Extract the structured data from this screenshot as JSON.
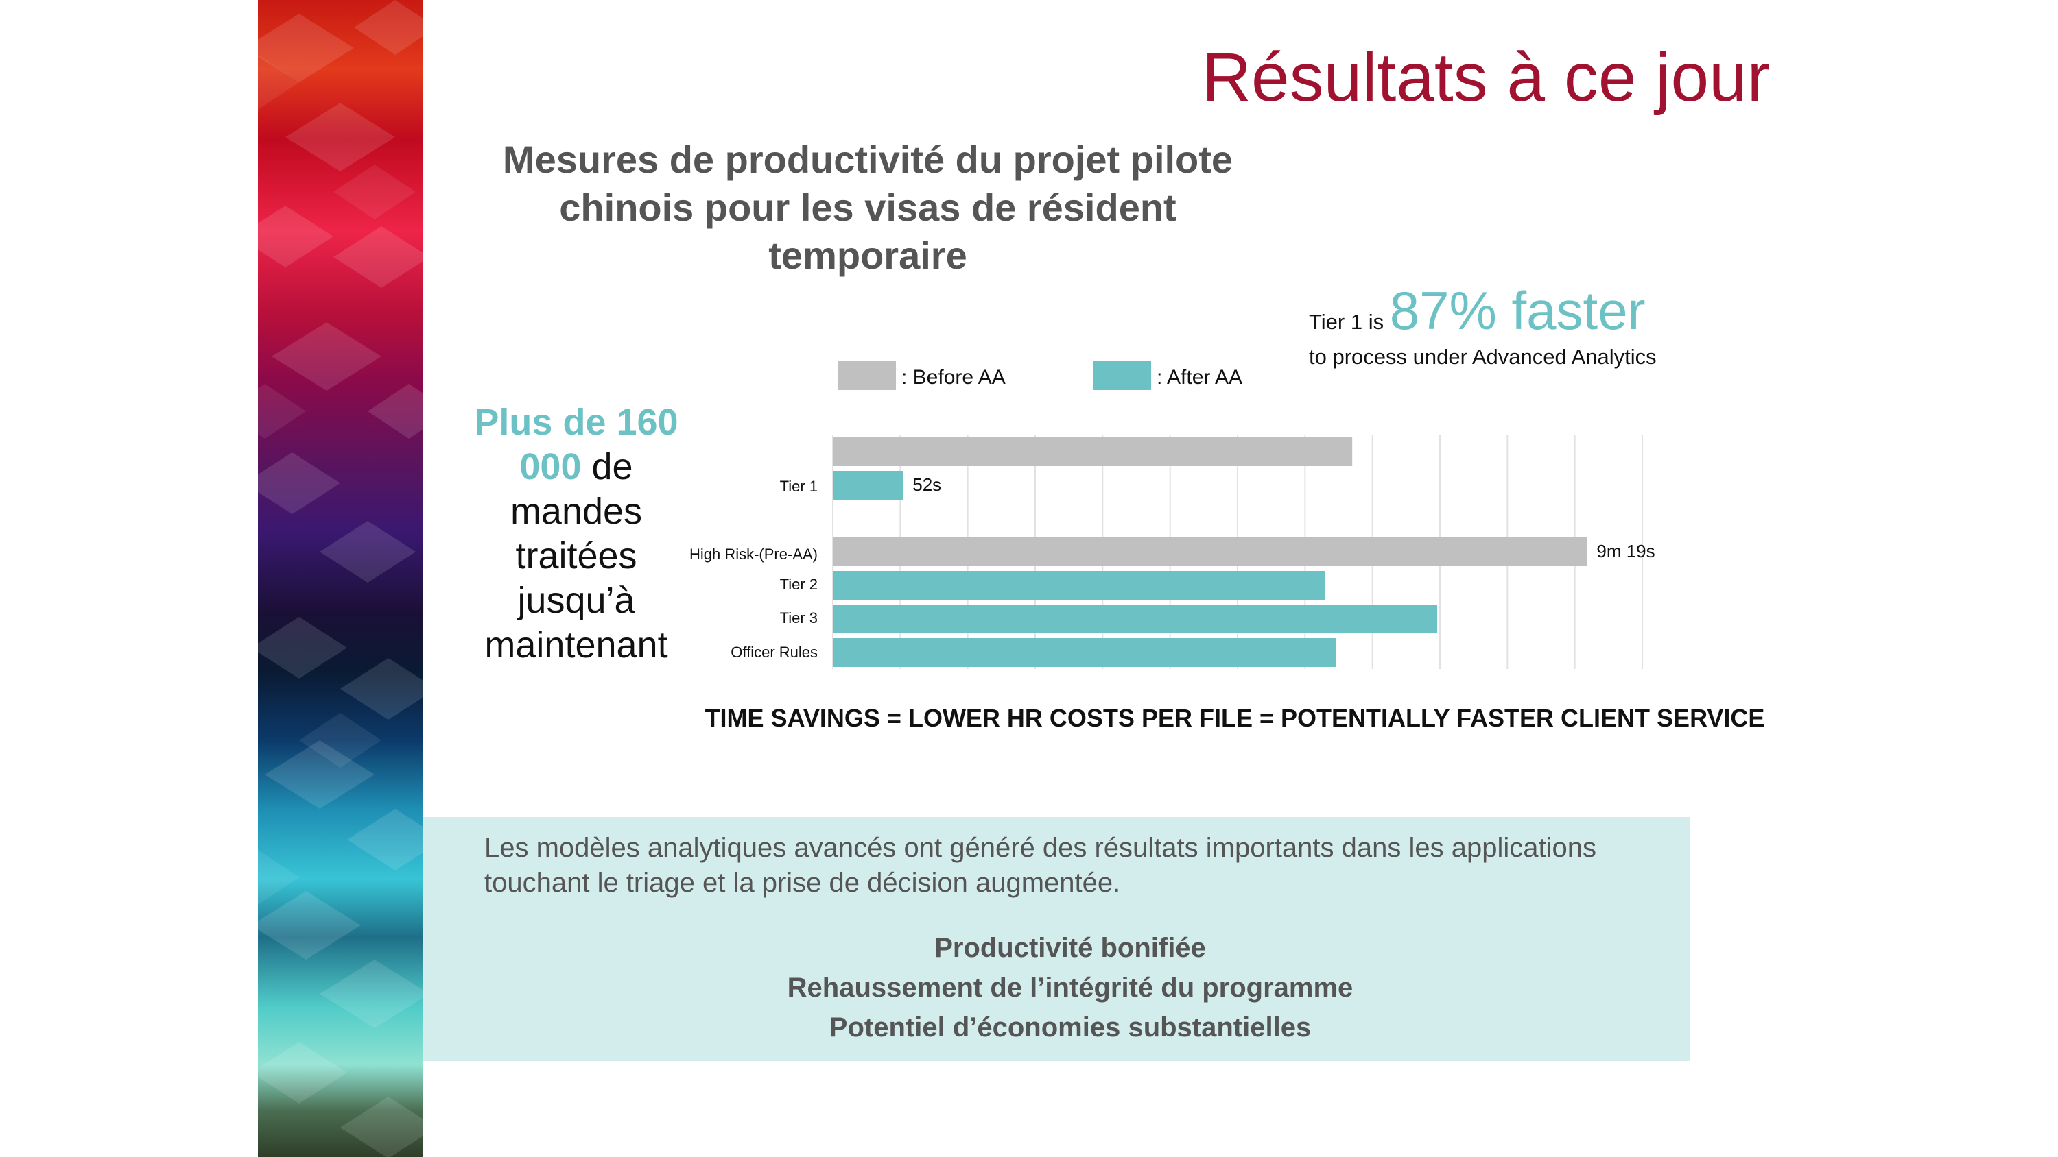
{
  "slide": {
    "title": "Résultats à ce jour",
    "heading": "Mesures de productivité du projet pilote chinois pour les visas de résident temporaire",
    "callout": {
      "highlight": "Plus de 160 000",
      "text": "de mandes traitées jusqu’à maintenant"
    },
    "tier1_note": {
      "prefix": "Tier 1 is",
      "highlight": "87% faster",
      "suffix": "to process under Advanced Analytics"
    },
    "time_savings": "TIME SAVINGS = LOWER HR COSTS PER FILE = POTENTIALLY FASTER CLIENT SERVICE",
    "summary": {
      "text": "Les modèles analytiques avancés ont généré des résultats importants dans les applications touchant le triage et la prise de décision augmentée.",
      "benefits": [
        "Productivité bonifiée",
        "Rehaussement de l’intégrité du programme",
        "Potentiel d’économies substantielles"
      ]
    }
  },
  "colors": {
    "title": "#a01230",
    "teal": "#6cc1c4",
    "before": "#c0c0c0",
    "summary_bg": "#d3ecec"
  },
  "chart_data": {
    "type": "bar",
    "orientation": "horizontal",
    "units": "seconds",
    "xlim": [
      0,
      600
    ],
    "grid": true,
    "legend_position": "top",
    "legend": [
      {
        "label": ": Before AA",
        "color": "#c0c0c0"
      },
      {
        "label": ": After AA",
        "color": "#6cc1c4"
      }
    ],
    "bars": [
      {
        "category": "Tier 1",
        "series": "Before AA",
        "value": 385,
        "label": ""
      },
      {
        "category": "Tier 1",
        "series": "After AA",
        "value": 52,
        "label": "52s"
      },
      {
        "category": "High Risk-(Pre-AA)",
        "series": "Before AA",
        "value": 559,
        "label": "9m 19s"
      },
      {
        "category": "Tier 2",
        "series": "After AA",
        "value": 365,
        "label": ""
      },
      {
        "category": "Tier 3",
        "series": "After AA",
        "value": 448,
        "label": ""
      },
      {
        "category": "Officer Rules",
        "series": "After AA",
        "value": 373,
        "label": ""
      }
    ],
    "category_labels": [
      {
        "text": "Tier 1",
        "bars": [
          0,
          1
        ]
      },
      {
        "text": "High Risk-(Pre-AA)",
        "bars": [
          2
        ]
      },
      {
        "text": "Tier 2",
        "bars": [
          3
        ]
      },
      {
        "text": "Tier 3",
        "bars": [
          4
        ]
      },
      {
        "text": "Officer Rules",
        "bars": [
          5
        ]
      }
    ]
  }
}
